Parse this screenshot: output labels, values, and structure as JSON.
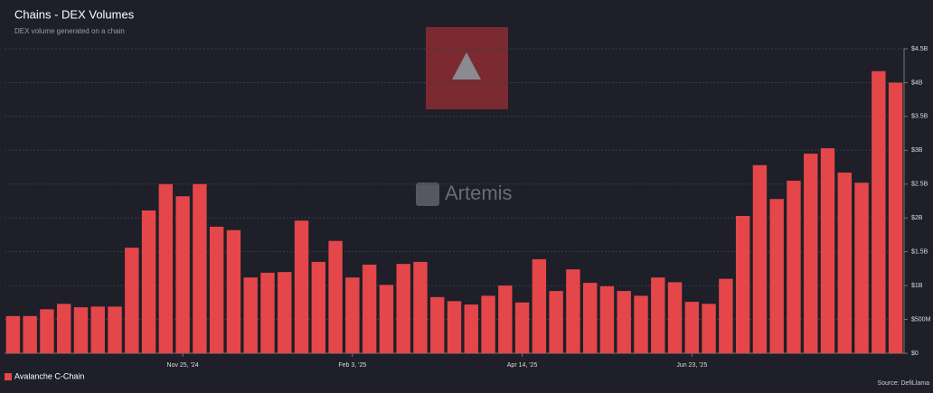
{
  "chart_data": {
    "type": "bar",
    "title": "Chains - DEX Volumes",
    "subtitle": "DEX volume generated on a chain",
    "watermark": "Artemis",
    "source": "Source: DefiLlama",
    "categories": [
      null,
      null,
      null,
      null,
      null,
      null,
      null,
      null,
      null,
      null,
      "Nov 25, '24",
      null,
      null,
      null,
      null,
      null,
      null,
      null,
      null,
      null,
      "Feb 3, '25",
      null,
      null,
      null,
      null,
      null,
      null,
      null,
      null,
      null,
      "Apr 14, '25",
      null,
      null,
      null,
      null,
      null,
      null,
      null,
      null,
      null,
      "Jun 23, '25",
      null,
      null,
      null,
      null,
      null,
      null,
      null,
      null,
      null,
      null,
      null,
      null
    ],
    "series": [
      {
        "name": "Avalanche C-Chain",
        "color": "#e5464a",
        "values": [
          0.55,
          0.55,
          0.65,
          0.73,
          0.68,
          0.69,
          0.69,
          1.56,
          2.11,
          2.5,
          2.32,
          2.5,
          1.87,
          1.82,
          1.12,
          1.19,
          1.2,
          1.96,
          1.35,
          1.66,
          1.12,
          1.31,
          1.01,
          1.32,
          1.35,
          0.83,
          0.77,
          0.72,
          0.85,
          1.0,
          0.75,
          1.39,
          0.92,
          1.24,
          1.04,
          0.99,
          0.92,
          0.85,
          1.12,
          1.05,
          0.76,
          0.73,
          1.1,
          2.03,
          2.78,
          2.28,
          2.55,
          2.95,
          3.03,
          2.67,
          2.52,
          4.17,
          4.0
        ]
      }
    ],
    "ylim": [
      0,
      4.5
    ],
    "yticks": [
      {
        "value": 0,
        "label": "$0"
      },
      {
        "value": 0.5,
        "label": "$500M"
      },
      {
        "value": 1,
        "label": "$1B"
      },
      {
        "value": 1.5,
        "label": "$1.5B"
      },
      {
        "value": 2,
        "label": "$2B"
      },
      {
        "value": 2.5,
        "label": "$2.5B"
      },
      {
        "value": 3,
        "label": "$3B"
      },
      {
        "value": 3.5,
        "label": "$3.5B"
      },
      {
        "value": 4,
        "label": "$4B"
      },
      {
        "value": 4.5,
        "label": "$4.5B"
      }
    ],
    "grid": true,
    "legend": "bottom-left"
  }
}
